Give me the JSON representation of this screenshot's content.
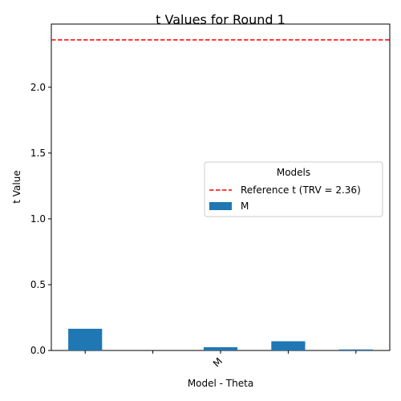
{
  "chart_data": {
    "type": "bar",
    "title": "t Values for Round 1",
    "xlabel": "Model - Theta",
    "ylabel": "t Value",
    "ylim": [
      0,
      2.48
    ],
    "yticks": [
      0.0,
      0.5,
      1.0,
      1.5,
      2.0
    ],
    "ytick_labels": [
      "0.0",
      "0.5",
      "1.0",
      "1.5",
      "2.0"
    ],
    "categories": [
      "",
      "",
      "M",
      "",
      ""
    ],
    "series": [
      {
        "name": "M",
        "color": "#1f77b4",
        "values": [
          0.165,
          0.0,
          0.025,
          0.07,
          0.008
        ]
      }
    ],
    "reference_line": {
      "label": "Reference t (TRV = 2.36)",
      "value": 2.36,
      "color": "#ff0000",
      "style": "dashed"
    },
    "legend": {
      "title": "Models",
      "placement": "center-right"
    },
    "grid": false,
    "xtick_rotation_deg": 45
  }
}
